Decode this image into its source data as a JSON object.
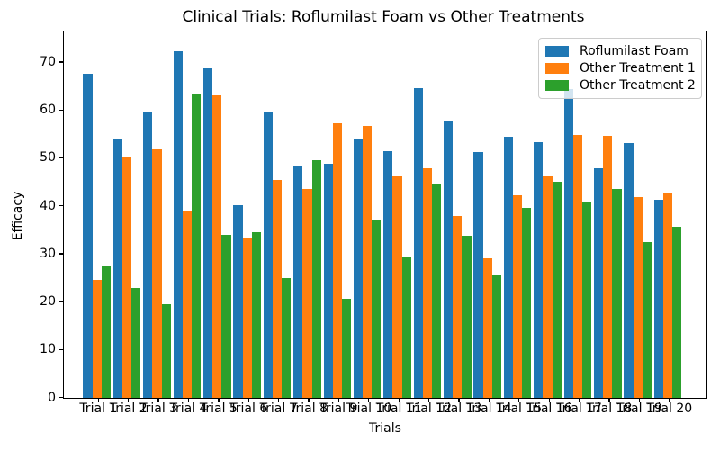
{
  "chart_data": {
    "type": "bar",
    "title": "Clinical Trials: Roflumilast Foam vs Other Treatments",
    "xlabel": "Trials",
    "ylabel": "Efficacy",
    "categories": [
      "Trial 1",
      "Trial 2",
      "Trial 3",
      "Trial 4",
      "Trial 5",
      "Trial 6",
      "Trial 7",
      "Trial 8",
      "Trial 9",
      "Trial 10",
      "Trial 11",
      "Trial 12",
      "Trial 13",
      "Trial 14",
      "Trial 15",
      "Trial 16",
      "Trial 17",
      "Trial 18",
      "Trial 19",
      "Trial 20"
    ],
    "series": [
      {
        "name": "Roflumilast Foam",
        "color": "#1f77b4",
        "values": [
          67.6,
          54.1,
          59.8,
          72.3,
          68.7,
          40.2,
          59.6,
          48.3,
          48.9,
          54.0,
          51.4,
          64.6,
          57.7,
          51.3,
          54.5,
          53.3,
          64.4,
          47.9,
          53.2,
          41.4
        ]
      },
      {
        "name": "Other Treatment 1",
        "color": "#ff7f0e",
        "values": [
          24.6,
          50.1,
          51.8,
          39.0,
          63.1,
          33.4,
          45.4,
          43.6,
          57.3,
          56.7,
          46.1,
          47.9,
          37.9,
          29.1,
          42.2,
          46.2,
          54.9,
          54.7,
          41.9,
          42.6
        ]
      },
      {
        "name": "Other Treatment 2",
        "color": "#2ca02c",
        "values": [
          27.4,
          22.9,
          19.5,
          63.5,
          34.0,
          34.6,
          24.9,
          49.5,
          20.6,
          37.0,
          29.3,
          44.7,
          33.8,
          25.8,
          39.6,
          45.0,
          40.8,
          43.6,
          32.5,
          35.7
        ]
      }
    ],
    "yticks": [
      0,
      10,
      20,
      30,
      40,
      50,
      60,
      70
    ],
    "ylim": [
      0,
      76.3
    ],
    "grid": false,
    "legend_position": "upper right"
  }
}
